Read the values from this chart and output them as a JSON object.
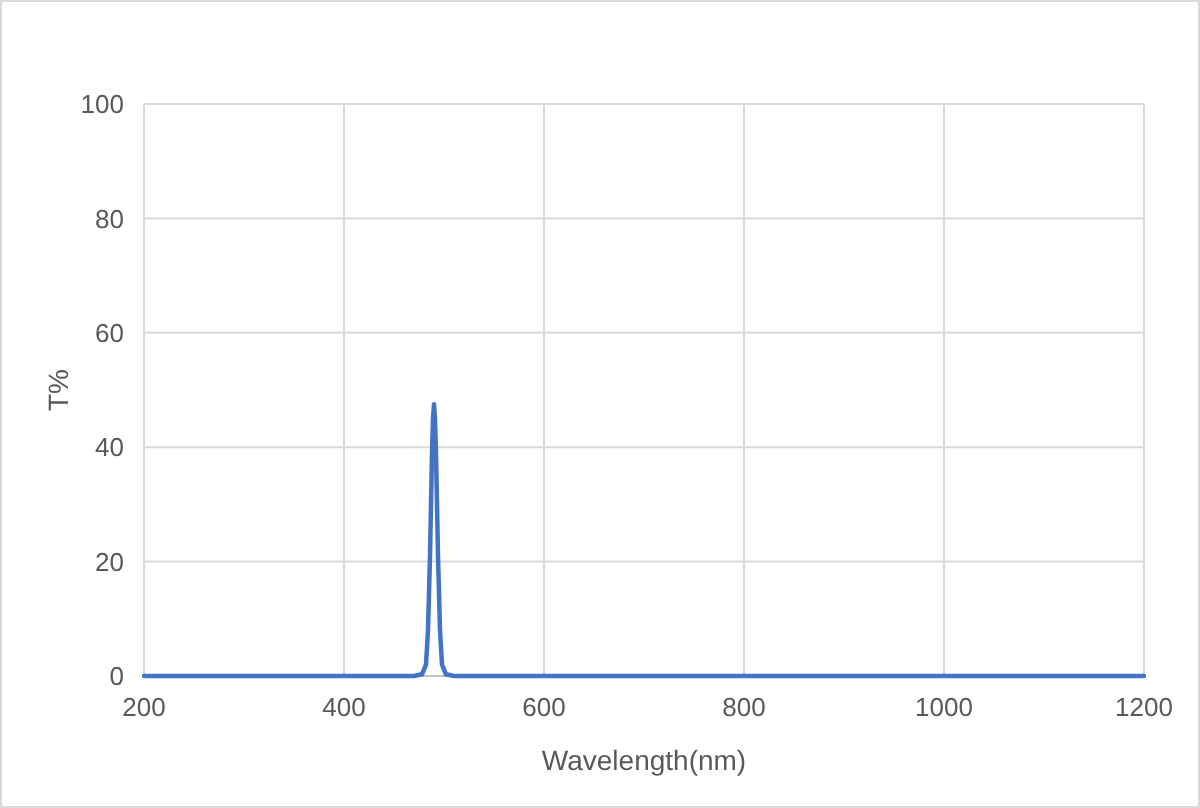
{
  "chart_data": {
    "type": "line",
    "xlabel": "Wavelength(nm)",
    "ylabel": "T%",
    "x": [
      200,
      470,
      478,
      482,
      484,
      486,
      488,
      489,
      490,
      491,
      492,
      494,
      496,
      498,
      502,
      510,
      1200
    ],
    "series": [
      {
        "color": "#4472c4",
        "values": [
          0,
          0,
          0.3,
          2,
          8,
          21,
          39,
          45,
          47.5,
          45,
          39,
          21,
          8,
          2,
          0.3,
          0,
          0
        ]
      }
    ],
    "xlim": [
      200,
      1200
    ],
    "xticks": [
      200,
      400,
      600,
      800,
      1000,
      1200
    ],
    "ylim": [
      0,
      100
    ],
    "yticks": [
      0,
      20,
      40,
      60,
      80,
      100
    ],
    "grid": true,
    "marker": "none",
    "line_style": "solid"
  }
}
